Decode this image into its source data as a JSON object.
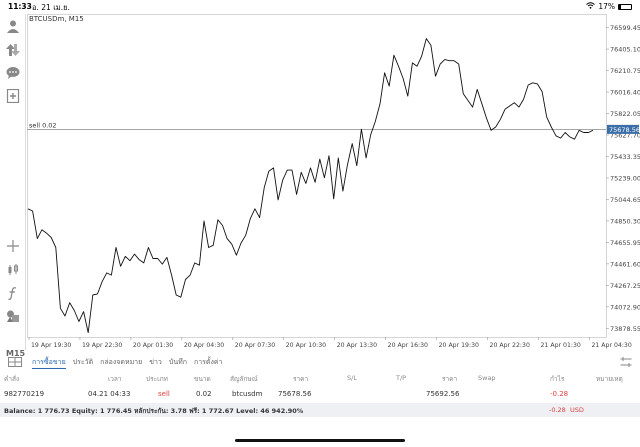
{
  "status": {
    "time": "11:33",
    "date": "อ. 21 เม.ย.",
    "battery": "17%",
    "battery_level_fraction": 0.17
  },
  "chart": {
    "symbol": "BTCUSDm, M15",
    "timeframe": "M15",
    "position_line_label": "sell 0.02",
    "current_price_label": "75678.56",
    "y_ticks": [
      "76599.45",
      "76405.10",
      "76210.75",
      "76016.40",
      "75822.05",
      "75627.70",
      "75433.35",
      "75239.00",
      "75044.65",
      "74850.30",
      "74655.95",
      "74461.60",
      "74267.25",
      "74072.90",
      "73878.55"
    ],
    "x_ticks": [
      "19 Apr 19:30",
      "19 Apr 22:30",
      "20 Apr 01:30",
      "20 Apr 04:30",
      "20 Apr 07:30",
      "20 Apr 10:30",
      "20 Apr 13:30",
      "20 Apr 16:30",
      "20 Apr 19:30",
      "20 Apr 22:30",
      "21 Apr 01:30",
      "21 Apr 04:30"
    ]
  },
  "chart_data": {
    "type": "line",
    "series": [
      {
        "values": [
          74960,
          74940,
          74690,
          74770,
          74740,
          74700,
          74610,
          74060,
          73990,
          74110,
          74040,
          73940,
          74030,
          73840,
          74180,
          74190,
          74300,
          74380,
          74360,
          74610,
          74440,
          74530,
          74490,
          74550,
          74500,
          74470,
          74610,
          74510,
          74510,
          74460,
          74520,
          74360,
          74180,
          74160,
          74320,
          74360,
          74470,
          74450,
          74850,
          74610,
          74630,
          74860,
          74810,
          74690,
          74640,
          74540,
          74650,
          74720,
          74870,
          74960,
          74880,
          75150,
          75300,
          75330,
          75040,
          75220,
          75310,
          75310,
          75090,
          75290,
          75190,
          75330,
          75200,
          75410,
          75240,
          75440,
          75050,
          75420,
          75120,
          75360,
          75550,
          75350,
          75680,
          75420,
          75630,
          75750,
          75910,
          76190,
          76070,
          76350,
          76250,
          76140,
          75980,
          76280,
          76250,
          76340,
          76500,
          76440,
          76160,
          76270,
          76310,
          76300,
          76300,
          76270,
          76000,
          75940,
          75880,
          76040,
          75910,
          75780,
          75670,
          75700,
          75770,
          75860,
          75890,
          75920,
          75880,
          75950,
          76080,
          76100,
          76090,
          76020,
          75790,
          75700,
          75620,
          75600,
          75650,
          75610,
          75590,
          75670,
          75650,
          75650,
          75670
        ]
      }
    ],
    "ylim": [
      73800,
      76650
    ],
    "ytick_values": [
      76599.45,
      76405.1,
      76210.75,
      76016.4,
      75822.05,
      75627.7,
      75433.35,
      75239.0,
      75044.65,
      74850.3,
      74655.95,
      74461.6,
      74267.25,
      74072.9,
      73878.55
    ],
    "hline": 75678.56,
    "grid": false
  },
  "tabs": [
    "การซื้อขาย",
    "ประวัติ",
    "กล่องจดหมาย",
    "ข่าว",
    "บันทึก",
    "การตั้งค่า"
  ],
  "table": {
    "headers": [
      "คำสั่ง",
      "เวลา",
      "ประเภท",
      "ขนาด",
      "สัญลักษณ์",
      "ราคา",
      "S/L",
      "T/P",
      "ราคา",
      "Swap",
      "กำไร",
      "หมายเหตุ"
    ],
    "row": {
      "ticket": "982770219",
      "time": "04.21 04:33",
      "type": "sell",
      "volume": "0.02",
      "symbol": "btcusdm",
      "open_price": "75678.56",
      "current_price": "75692.56",
      "profit": "-0.28"
    }
  },
  "balance": {
    "text": "Balance: 1 776.73 Equity: 1 776.45 หลักประกัน: 3.78 ฟรี: 1 772.67 Level: 46 942.90%",
    "profit": "-0.28",
    "currency": "USD"
  },
  "colors": {
    "accent": "#2b6cb0",
    "loss": "#e04040",
    "price_tag": "#3b6ea8"
  },
  "icons": [
    "person-icon",
    "trade-arrows-icon",
    "chat-icon",
    "new-order-icon",
    "crosshair-icon",
    "candles-icon",
    "indicator-f-icon",
    "objects-icon",
    "grid-icon",
    "layout-icon"
  ]
}
